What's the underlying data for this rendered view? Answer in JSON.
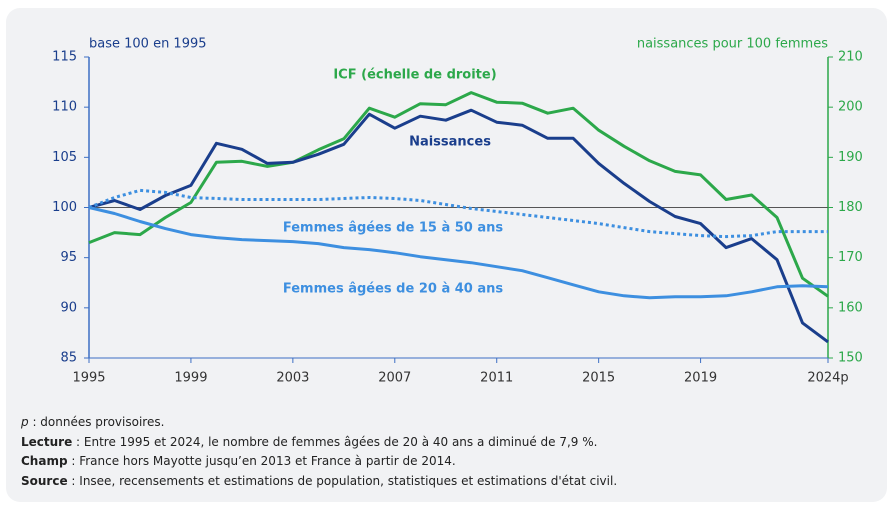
{
  "chart_data": {
    "type": "line",
    "ylabel": "base 100 en 1995",
    "y2label": "naissances pour 100 femmes",
    "x": [
      1995,
      1996,
      1997,
      1998,
      1999,
      2000,
      2001,
      2002,
      2003,
      2004,
      2005,
      2006,
      2007,
      2008,
      2009,
      2010,
      2011,
      2012,
      2013,
      2014,
      2015,
      2016,
      2017,
      2018,
      2019,
      2020,
      2021,
      2022,
      2023,
      2024
    ],
    "xlim": [
      1995,
      2024
    ],
    "xticks": [
      1995,
      1999,
      2003,
      2007,
      2011,
      2015,
      2019,
      {
        "value": 2024,
        "label": "2024p"
      }
    ],
    "ylim": [
      85,
      115
    ],
    "yticks": [
      85,
      90,
      95,
      100,
      105,
      110,
      115
    ],
    "y2lim": [
      150,
      210
    ],
    "y2ticks": [
      150,
      160,
      170,
      180,
      190,
      200,
      210
    ],
    "reference_line": 100,
    "series": [
      {
        "name": "ICF (échelle de droite)",
        "color": "#2ca84a",
        "axis": "y2",
        "values": [
          173,
          175,
          174.6,
          178,
          181,
          189,
          189.2,
          188.2,
          189,
          191.5,
          193.7,
          199.8,
          198,
          200.7,
          200.5,
          202.9,
          201,
          200.8,
          198.8,
          199.8,
          195.4,
          192.2,
          189.3,
          187.2,
          186.5,
          181.6,
          182.5,
          178,
          165.9,
          162.3
        ]
      },
      {
        "name": "Naissances",
        "color": "#1a3e8c",
        "values": [
          100,
          100.7,
          99.8,
          101.2,
          102.2,
          106.4,
          105.8,
          104.4,
          104.5,
          105.3,
          106.3,
          109.3,
          107.9,
          109.1,
          108.7,
          109.7,
          108.5,
          108.2,
          106.9,
          106.9,
          104.4,
          102.4,
          100.6,
          99.1,
          98.4,
          96.0,
          96.9,
          94.8,
          88.5,
          86.6
        ]
      },
      {
        "name": "Femmes âgées de 15 à 50 ans",
        "color": "#3d8fe0",
        "dashed": true,
        "values": [
          100,
          101,
          101.7,
          101.5,
          101.0,
          100.9,
          100.8,
          100.8,
          100.8,
          100.8,
          100.9,
          101.0,
          100.9,
          100.7,
          100.3,
          99.9,
          99.6,
          99.3,
          99.0,
          98.7,
          98.4,
          98.0,
          97.6,
          97.4,
          97.2,
          97.1,
          97.2,
          97.6,
          97.6,
          97.6
        ]
      },
      {
        "name": "Femmes âgées de 20 à 40 ans",
        "color": "#3d8fe0",
        "values": [
          100,
          99.4,
          98.6,
          97.9,
          97.3,
          97.0,
          96.8,
          96.7,
          96.6,
          96.4,
          96.0,
          95.8,
          95.5,
          95.1,
          94.8,
          94.5,
          94.1,
          93.7,
          93.0,
          92.3,
          91.6,
          91.2,
          91.0,
          91.1,
          91.1,
          91.2,
          91.6,
          92.1,
          92.2,
          92.1
        ]
      }
    ]
  },
  "notes": [
    {
      "label": "p",
      "text": " : données provisoires."
    },
    {
      "label": "Lecture",
      "text": " : Entre 1995 et 2024, le nombre de femmes âgées de 20 à 40 ans a diminué de 7,9 %."
    },
    {
      "label": "Champ",
      "text": " : France hors Mayotte jusqu’en 2013 et France à partir de 2014."
    },
    {
      "label": "Source",
      "text": " : Insee, recensements et estimations de population, statistiques et estimations d'état civil."
    }
  ]
}
